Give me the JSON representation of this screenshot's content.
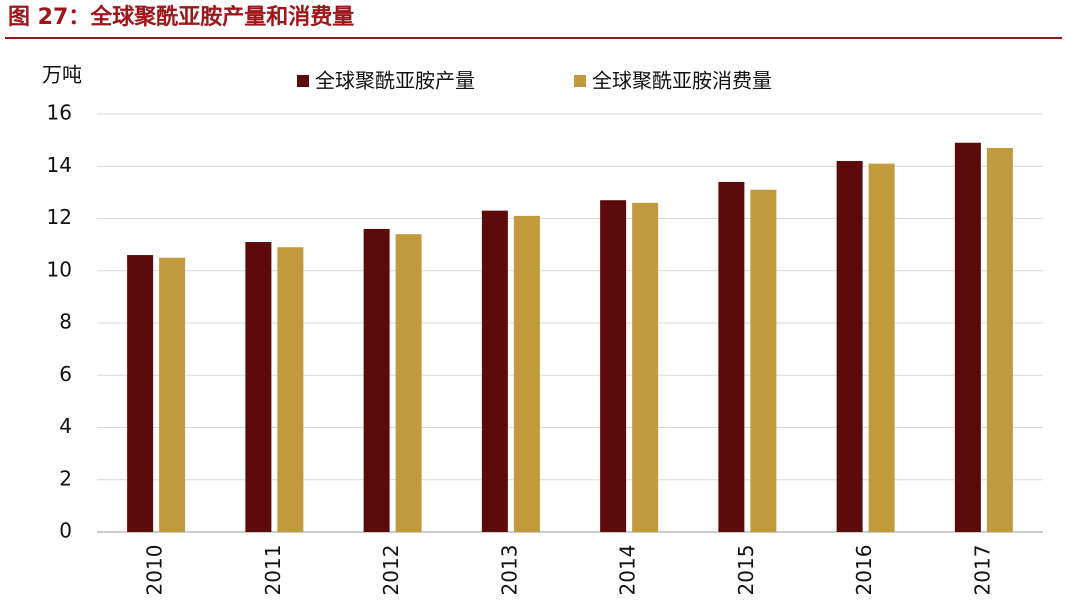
{
  "chart_data": {
    "type": "bar",
    "title": "图 27：全球聚酰亚胺产量和消费量",
    "y_label": "万吨",
    "categories": [
      "2010",
      "2011",
      "2012",
      "2013",
      "2014",
      "2015",
      "2016",
      "2017"
    ],
    "series": [
      {
        "name": "全球聚酰亚胺产量",
        "color": "#5c0a0a",
        "values": [
          10.6,
          11.1,
          11.6,
          12.3,
          12.7,
          13.4,
          14.2,
          14.9
        ]
      },
      {
        "name": "全球聚酰亚胺消费量",
        "color": "#c09a3c",
        "values": [
          10.5,
          10.9,
          11.4,
          12.1,
          12.6,
          13.1,
          14.1,
          14.7
        ]
      }
    ],
    "ylim": [
      0,
      16
    ],
    "yticks": [
      0,
      2,
      4,
      6,
      8,
      10,
      12,
      14,
      16
    ],
    "grid": true
  }
}
